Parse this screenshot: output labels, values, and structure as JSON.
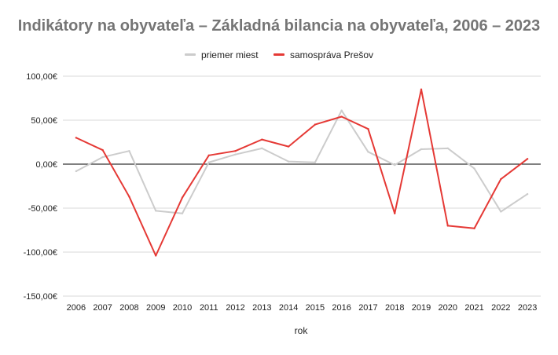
{
  "chart_data": {
    "type": "line",
    "title": "Indikátory na obyvateľa – Základná bilancia na obyvateľa, 2006 – 2023",
    "xlabel": "rok",
    "ylabel": "",
    "x": [
      2006,
      2007,
      2008,
      2009,
      2010,
      2011,
      2012,
      2013,
      2014,
      2015,
      2016,
      2017,
      2018,
      2019,
      2020,
      2021,
      2022,
      2023
    ],
    "ylim": [
      -150,
      100
    ],
    "yticks": [
      100,
      50,
      0,
      -50,
      -100,
      -150
    ],
    "ytick_labels": [
      "100,00€",
      "50,00€",
      "0,00€",
      "-50,00€",
      "-100,00€",
      "-150,00€"
    ],
    "grid": true,
    "legend_position": "top",
    "series": [
      {
        "name": "priemer miest",
        "color": "#cccccc",
        "values": [
          -8,
          8,
          15,
          -53,
          -56,
          2,
          11,
          18,
          3,
          2,
          61,
          14,
          -1,
          17,
          18,
          -5,
          -54,
          -34
        ]
      },
      {
        "name": "samospráva Prešov",
        "color": "#e53935",
        "values": [
          30,
          16,
          -37,
          -104,
          -38,
          10,
          15,
          28,
          20,
          45,
          54,
          40,
          -56,
          85,
          -70,
          -73,
          -17,
          6
        ]
      }
    ]
  }
}
